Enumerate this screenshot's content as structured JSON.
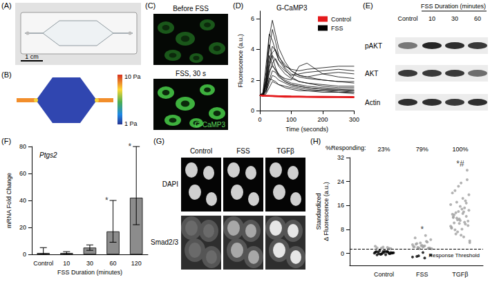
{
  "panels": {
    "A": {
      "label": "(A)",
      "scale_bar": "1 cm"
    },
    "B": {
      "label": "(B)",
      "colorbar_labels": [
        "10 Pa",
        "1 Pa"
      ]
    },
    "C": {
      "label": "(C)",
      "images": [
        "Before FSS",
        "FSS, 30 s"
      ],
      "stain": "G-CaMP3"
    },
    "E": {
      "label": "(E)",
      "header": "FSS Duration (minutes)",
      "lanes": [
        "Control",
        "10",
        "30",
        "60"
      ],
      "rows": [
        "pAKT",
        "AKT",
        "Actin"
      ]
    },
    "G": {
      "label": "(G)",
      "columns": [
        "Control",
        "FSS",
        "TGFβ"
      ],
      "rows": [
        "DAPI",
        "Smad2/3"
      ]
    }
  },
  "chart_data": [
    {
      "label": "(D)",
      "type": "line",
      "title": "G-CaMP3",
      "xlabel": "Time (seconds)",
      "ylabel": "Fluorescence (a.u.)",
      "x": [
        0,
        10,
        20,
        30,
        40,
        50,
        60,
        80,
        100,
        125,
        150,
        200,
        250,
        300
      ],
      "xlim": [
        0,
        300
      ],
      "xticks": [
        0,
        100,
        200,
        300
      ],
      "ylim": [
        0,
        6.5
      ],
      "yticks": [
        0,
        2,
        4,
        6
      ],
      "legend": "upper right",
      "series": [
        {
          "name": "Control",
          "color": "#e41a1c",
          "values": [
            1,
            0.95,
            0.97,
            0.96,
            0.95,
            0.94,
            0.95,
            0.93,
            0.92,
            0.92,
            0.91,
            0.9,
            0.9,
            0.89
          ]
        },
        {
          "name": "Control",
          "color": "#e41a1c",
          "values": [
            1,
            1.0,
            0.98,
            0.97,
            0.97,
            0.96,
            0.95,
            0.95,
            0.94,
            0.93,
            0.92,
            0.92,
            0.91,
            0.9
          ]
        },
        {
          "name": "Control",
          "color": "#e41a1c",
          "values": [
            1,
            0.98,
            0.96,
            0.95,
            0.94,
            0.93,
            0.92,
            0.9,
            0.9,
            0.89,
            0.88,
            0.87,
            0.87,
            0.86
          ]
        },
        {
          "name": "FSS",
          "color": "#000000",
          "values": [
            1,
            1.1,
            2.5,
            4.8,
            5.9,
            5.0,
            4.1,
            3.2,
            2.6,
            2.3,
            2.2,
            2.0,
            1.9,
            1.8
          ]
        },
        {
          "name": "FSS",
          "color": "#000000",
          "values": [
            1,
            1.0,
            2.0,
            4.0,
            5.3,
            4.5,
            3.6,
            2.8,
            2.4,
            2.2,
            2.1,
            2.0,
            1.9,
            1.9
          ]
        },
        {
          "name": "FSS",
          "color": "#000000",
          "values": [
            1,
            1.2,
            3.0,
            5.0,
            4.6,
            3.9,
            3.3,
            2.9,
            2.7,
            2.6,
            2.7,
            2.8,
            2.9,
            2.9
          ]
        },
        {
          "name": "FSS",
          "color": "#000000",
          "values": [
            1,
            1.0,
            1.8,
            3.2,
            4.2,
            3.9,
            3.3,
            2.7,
            2.2,
            1.9,
            1.8,
            1.7,
            1.6,
            1.6
          ]
        },
        {
          "name": "FSS",
          "color": "#000000",
          "values": [
            1,
            1.1,
            1.6,
            2.8,
            3.6,
            3.3,
            2.9,
            2.4,
            2.1,
            1.9,
            1.8,
            1.6,
            1.5,
            1.5
          ]
        },
        {
          "name": "FSS",
          "color": "#000000",
          "values": [
            1,
            1.0,
            1.4,
            2.4,
            3.1,
            3.4,
            3.0,
            2.6,
            2.3,
            2.4,
            2.5,
            2.6,
            2.7,
            2.6
          ]
        },
        {
          "name": "FSS",
          "color": "#000000",
          "values": [
            1,
            1.0,
            1.5,
            2.6,
            2.9,
            2.7,
            2.4,
            2.0,
            1.8,
            1.7,
            1.6,
            1.5,
            1.4,
            1.4
          ]
        },
        {
          "name": "FSS",
          "color": "#000000",
          "values": [
            1,
            1.1,
            1.3,
            2.0,
            2.6,
            2.5,
            2.2,
            1.9,
            1.7,
            1.6,
            1.5,
            1.4,
            1.3,
            1.3
          ]
        },
        {
          "name": "FSS",
          "color": "#000000",
          "values": [
            1,
            1.0,
            1.9,
            3.6,
            3.0,
            2.6,
            2.3,
            2.1,
            2.0,
            2.9,
            3.1,
            2.4,
            2.2,
            2.1
          ]
        },
        {
          "name": "FSS",
          "color": "#000000",
          "values": [
            1,
            1.0,
            1.2,
            1.8,
            2.3,
            2.2,
            2.0,
            1.8,
            1.6,
            1.5,
            1.4,
            1.3,
            1.3,
            1.2
          ]
        },
        {
          "name": "FSS",
          "color": "#000000",
          "values": [
            1,
            1.1,
            2.2,
            4.3,
            3.5,
            2.8,
            2.3,
            1.9,
            1.7,
            1.6,
            1.5,
            1.4,
            1.4,
            1.3
          ]
        },
        {
          "name": "FSS",
          "color": "#000000",
          "values": [
            1,
            1.0,
            1.3,
            2.1,
            2.0,
            1.9,
            1.7,
            1.6,
            1.5,
            1.4,
            1.3,
            1.3,
            1.2,
            1.2
          ]
        },
        {
          "name": "FSS",
          "color": "#000000",
          "values": [
            1,
            1.0,
            1.7,
            3.0,
            3.8,
            4.0,
            3.5,
            3.0,
            2.6,
            2.3,
            2.2,
            2.4,
            2.5,
            2.4
          ]
        },
        {
          "name": "FSS",
          "color": "#000000",
          "values": [
            1,
            1.0,
            1.1,
            1.5,
            1.9,
            1.8,
            1.7,
            1.5,
            1.4,
            1.3,
            1.3,
            1.2,
            1.2,
            1.1
          ]
        }
      ]
    },
    {
      "label": "(F)",
      "type": "bar",
      "title": "Ptgs2",
      "xlabel": "FSS Duration (minutes)",
      "ylabel": "mRNA Fold Change",
      "categories": [
        "Control",
        "10",
        "30",
        "60",
        "120"
      ],
      "values": [
        1,
        1,
        5,
        17,
        42
      ],
      "error_low": [
        0,
        0,
        3,
        9,
        22
      ],
      "error_high": [
        5,
        2,
        7,
        40,
        80
      ],
      "color": "#8c8c8c",
      "ylim": [
        0,
        80
      ],
      "yticks": [
        0,
        20,
        40,
        60,
        80
      ],
      "annotations": [
        {
          "category": "60",
          "text": "*"
        },
        {
          "category": "120",
          "text": "*"
        }
      ]
    },
    {
      "label": "(H)",
      "type": "scatter",
      "ylabel": "Standardized\nΔ Fluorescence (a.u.)",
      "categories": [
        "Control",
        "FSS",
        "TGFβ"
      ],
      "ylim": [
        -4,
        32
      ],
      "yticks": [
        0,
        8,
        16,
        24,
        32
      ],
      "series": [
        {
          "color": "#000000",
          "values": [
            [
              0.1,
              -0.3,
              0.5,
              0.2,
              -0.1,
              0.8,
              0.3,
              -0.5,
              0.6,
              0.0,
              0.4,
              -0.2,
              0.7,
              0.2,
              0.9,
              -0.4,
              0.1,
              0.5,
              0.3,
              -0.1,
              0.6,
              0.0,
              0.4
            ],
            [
              -1.2,
              -0.8,
              -1.5,
              -0.6,
              -1.0,
              0.3
            ],
            []
          ]
        },
        {
          "color": "#a0a0a0",
          "values": [
            [
              1.6,
              1.9,
              2.1,
              1.7,
              2.4,
              1.8,
              2.0
            ],
            [
              1.6,
              2.0,
              2.4,
              1.8,
              3.1,
              2.7,
              1.7,
              2.2,
              3.5,
              4.0,
              2.9,
              1.9,
              2.5,
              4.6,
              3.3,
              2.1,
              1.8,
              5.2,
              2.6,
              3.8,
              2.3,
              1.6,
              6.0
            ],
            [
              4.2,
              6.5,
              8.1,
              9.3,
              10.2,
              11.0,
              12.4,
              13.1,
              14.0,
              15.2,
              16.3,
              17.1,
              18.4,
              19.6,
              21.0,
              23.5,
              27.8,
              12.0,
              11.5,
              9.8,
              8.7,
              7.2,
              5.5,
              3.6,
              13.6,
              14.8,
              10.8,
              12.9,
              15.7,
              16.8,
              20.2,
              22.4,
              10.4,
              9.1,
              11.8,
              13.3,
              14.4,
              7.9,
              6.1,
              24.6,
              12.2,
              10.0,
              17.6,
              8.4,
              11.2,
              13.9
            ]
          ]
        }
      ],
      "threshold": {
        "value": 1.5,
        "label": "Response Threshold"
      },
      "responding": {
        "title": "%Responding:",
        "values": [
          23,
          79,
          100
        ],
        "value_labels": [
          "23%",
          "79%",
          "100%"
        ]
      },
      "annotations": [
        {
          "category": "FSS",
          "text": "*"
        },
        {
          "category": "TGFβ",
          "text": "*#"
        }
      ]
    }
  ]
}
